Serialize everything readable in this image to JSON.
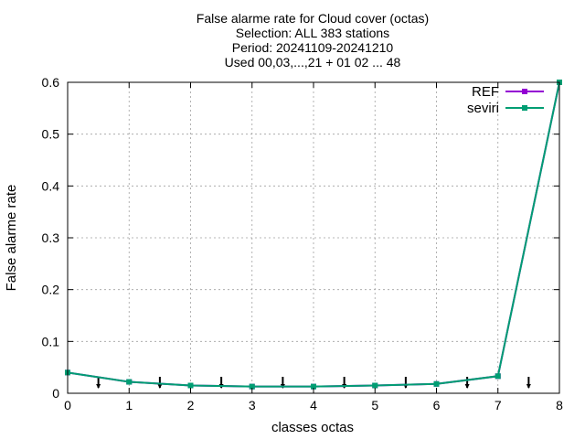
{
  "chart_data": {
    "type": "line",
    "title_lines": [
      "False alarme rate  for Cloud cover (octas)",
      "Selection: ALL    383 stations",
      "Period: 20241109-20241210",
      "Used 00,03,...,21 + 01 02 ... 48"
    ],
    "xlabel": "classes octas",
    "ylabel": "False alarme rate",
    "xlim": [
      0,
      8
    ],
    "ylim": [
      0,
      0.6
    ],
    "x_ticks": [
      "0",
      "1",
      "2",
      "3",
      "4",
      "5",
      "6",
      "7",
      "8"
    ],
    "y_ticks": [
      "0",
      "0.1",
      "0.2",
      "0.3",
      "0.4",
      "0.5",
      "0.6"
    ],
    "grid": true,
    "legend_position": "top-right",
    "x": [
      0,
      1,
      2,
      3,
      4,
      5,
      6,
      7,
      8
    ],
    "series": [
      {
        "name": "REF",
        "color": "#9400d3",
        "values": [
          0.04,
          0.022,
          0.015,
          0.013,
          0.013,
          0.015,
          0.018,
          0.033,
          0.6
        ]
      },
      {
        "name": "seviri",
        "color": "#009e73",
        "values": [
          0.04,
          0.022,
          0.015,
          0.013,
          0.013,
          0.015,
          0.018,
          0.033,
          0.6
        ]
      }
    ],
    "error_markers_x": [
      0.5,
      1.5,
      2.5,
      3.5,
      4.5,
      5.5,
      6.5,
      7.5
    ]
  }
}
